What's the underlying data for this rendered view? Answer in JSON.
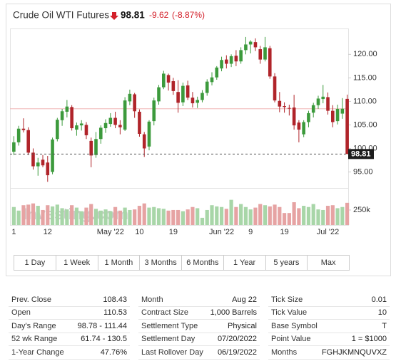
{
  "header": {
    "title": "Crude Oil WTI Futures",
    "price": "98.81",
    "change": "-9.62",
    "change_pct": "(-8.87%)"
  },
  "chart_data": {
    "type": "candlestick",
    "categories": [
      "1",
      null,
      null,
      null,
      null,
      null,
      null,
      "12",
      null,
      null,
      null,
      null,
      null,
      null,
      null,
      null,
      null,
      null,
      null,
      null,
      "May '22",
      null,
      null,
      null,
      null,
      null,
      "10",
      null,
      null,
      null,
      null,
      null,
      null,
      "19",
      null,
      null,
      null,
      null,
      null,
      null,
      null,
      null,
      null,
      "Jun '22",
      null,
      null,
      null,
      null,
      null,
      "9",
      null,
      null,
      null,
      null,
      null,
      null,
      "19",
      null,
      null,
      null,
      null,
      null,
      null,
      null,
      null,
      "Jul '22",
      null,
      null,
      null,
      null
    ],
    "open": [
      99.3,
      101.3,
      104.2,
      103.9,
      99.1,
      96.2,
      97.6,
      97.0,
      95.0,
      102.0,
      106.0,
      107.8,
      108.8,
      104.0,
      104.9,
      105.0,
      101.6,
      98.6,
      102.0,
      104.3,
      105.2,
      106.5,
      105.0,
      104.0,
      110.0,
      111.5,
      107.8,
      103.0,
      100.4,
      105.8,
      110.0,
      113.0,
      115.6,
      114.3,
      112.0,
      109.8,
      113.4,
      110.8,
      109.7,
      110.3,
      111.8,
      114.1,
      115.1,
      117.0,
      118.9,
      118.0,
      119.7,
      118.5,
      120.9,
      122.1,
      122.6,
      121.1,
      118.9,
      121.3,
      115.3,
      110.1,
      109.0,
      108.6,
      108.7,
      105.5,
      103.0,
      105.6,
      107.6,
      109.2,
      110.5,
      110.9,
      108.0,
      105.8,
      107.4,
      110.53
    ],
    "high": [
      102.6,
      104.8,
      106.4,
      104.5,
      100.0,
      98.0,
      98.6,
      98.4,
      102.3,
      106.5,
      108.4,
      110.3,
      109.2,
      105.5,
      106.0,
      105.6,
      102.3,
      103.5,
      104.9,
      106.2,
      107.5,
      107.8,
      106.0,
      110.9,
      112.5,
      111.8,
      108.3,
      103.5,
      106.0,
      110.8,
      113.5,
      116.5,
      115.9,
      115.0,
      114.5,
      114.0,
      114.4,
      112.0,
      111.0,
      112.4,
      114.7,
      116.2,
      117.5,
      119.5,
      119.8,
      120.0,
      120.9,
      121.5,
      123.7,
      123.0,
      123.4,
      121.8,
      123.7,
      121.8,
      116.0,
      112.0,
      109.8,
      109.3,
      111.4,
      106.0,
      106.0,
      108.0,
      109.7,
      111.2,
      113.5,
      111.9,
      109.2,
      109.3,
      110.7,
      111.44
    ],
    "low": [
      98.6,
      100.6,
      103.4,
      98.6,
      95.5,
      94.2,
      96.0,
      92.9,
      94.5,
      101.5,
      104.8,
      106.6,
      103.8,
      102.7,
      103.8,
      102.0,
      96.0,
      98.0,
      101.0,
      103.3,
      104.6,
      104.3,
      103.0,
      103.7,
      109.2,
      106.5,
      102.5,
      98.2,
      99.6,
      104.9,
      109.3,
      112.6,
      112.3,
      111.4,
      107.6,
      109.0,
      110.3,
      108.7,
      108.6,
      109.8,
      111.2,
      113.4,
      114.6,
      116.4,
      117.0,
      117.3,
      117.5,
      118.0,
      120.0,
      120.2,
      120.7,
      118.0,
      118.5,
      114.8,
      109.8,
      107.7,
      107.6,
      107.0,
      104.0,
      101.3,
      102.4,
      104.5,
      106.6,
      108.4,
      109.6,
      107.2,
      104.5,
      105.1,
      106.3,
      98.78
    ],
    "close": [
      101.3,
      104.2,
      103.9,
      99.1,
      96.2,
      97.0,
      96.4,
      94.3,
      101.9,
      106.1,
      107.9,
      108.9,
      104.3,
      104.9,
      105.3,
      102.8,
      98.5,
      102.0,
      104.4,
      105.4,
      106.5,
      105.0,
      104.5,
      110.2,
      111.6,
      107.9,
      103.1,
      100.0,
      105.7,
      110.2,
      113.0,
      115.9,
      114.0,
      112.2,
      109.7,
      113.3,
      110.8,
      109.6,
      110.3,
      111.8,
      114.2,
      115.1,
      117.2,
      118.8,
      118.0,
      119.6,
      118.5,
      120.9,
      122.1,
      122.7,
      121.5,
      118.9,
      121.5,
      115.3,
      110.2,
      108.9,
      108.8,
      108.5,
      104.9,
      104.0,
      105.6,
      107.5,
      109.2,
      110.6,
      111.0,
      108.0,
      105.6,
      108.4,
      108.43,
      98.81
    ],
    "volume": [
      300000,
      240000,
      330000,
      340000,
      360000,
      320000,
      250000,
      330000,
      310000,
      340000,
      280000,
      260000,
      330000,
      290000,
      230000,
      290000,
      350000,
      270000,
      240000,
      260000,
      230000,
      300000,
      240000,
      290000,
      250000,
      260000,
      320000,
      360000,
      290000,
      300000,
      280000,
      270000,
      240000,
      250000,
      250000,
      230000,
      260000,
      300000,
      280000,
      120000,
      250000,
      330000,
      310000,
      300000,
      270000,
      420000,
      300000,
      350000,
      300000,
      260000,
      290000,
      350000,
      330000,
      310000,
      340000,
      300000,
      200000,
      200000,
      380000,
      280000,
      320000,
      300000,
      350000,
      260000,
      250000,
      320000,
      330000,
      280000,
      300000,
      370000
    ],
    "ylim": [
      92.5,
      125.5
    ],
    "yticks": [
      {
        "value": 95,
        "label": "95.00"
      },
      {
        "value": 100,
        "label": "100.00"
      },
      {
        "value": 105,
        "label": "105.00"
      },
      {
        "value": 110,
        "label": "110.00"
      },
      {
        "value": 115,
        "label": "115.00"
      },
      {
        "value": 120,
        "label": "120.00"
      }
    ],
    "volume_ylim": [
      0,
      570000
    ],
    "volume_ticks": [
      {
        "value": 250000,
        "label": "250k"
      }
    ],
    "up_color": "#3c9a3c",
    "down_color": "#b0242a",
    "volume_up_color": "#a8d6a8",
    "volume_down_color": "#e6a3a3",
    "prev_close_color": "#f0b4b4",
    "watermark": "Investing.com"
  },
  "ranges": [
    "1 Day",
    "1 Week",
    "1 Month",
    "3 Months",
    "6 Months",
    "1 Year",
    "5 years",
    "Max"
  ],
  "stats": [
    [
      [
        "Prev. Close",
        "108.43"
      ],
      [
        "Open",
        "110.53"
      ],
      [
        "Day's Range",
        "98.78 - 111.44"
      ],
      [
        "52 wk Range",
        "61.74 - 130.5"
      ],
      [
        "1-Year Change",
        "47.76%"
      ]
    ],
    [
      [
        "Month",
        "Aug 22"
      ],
      [
        "Contract Size",
        "1,000 Barrels"
      ],
      [
        "Settlement Type",
        "Physical"
      ],
      [
        "Settlement Day",
        "07/20/2022"
      ],
      [
        "Last Rollover Day",
        "06/19/2022"
      ]
    ],
    [
      [
        "Tick Size",
        "0.01"
      ],
      [
        "Tick Value",
        "10"
      ],
      [
        "Base Symbol",
        "T"
      ],
      [
        "Point Value",
        "1 = $1000"
      ],
      [
        "Months",
        "FGHJKMNQUVXZ"
      ]
    ]
  ]
}
